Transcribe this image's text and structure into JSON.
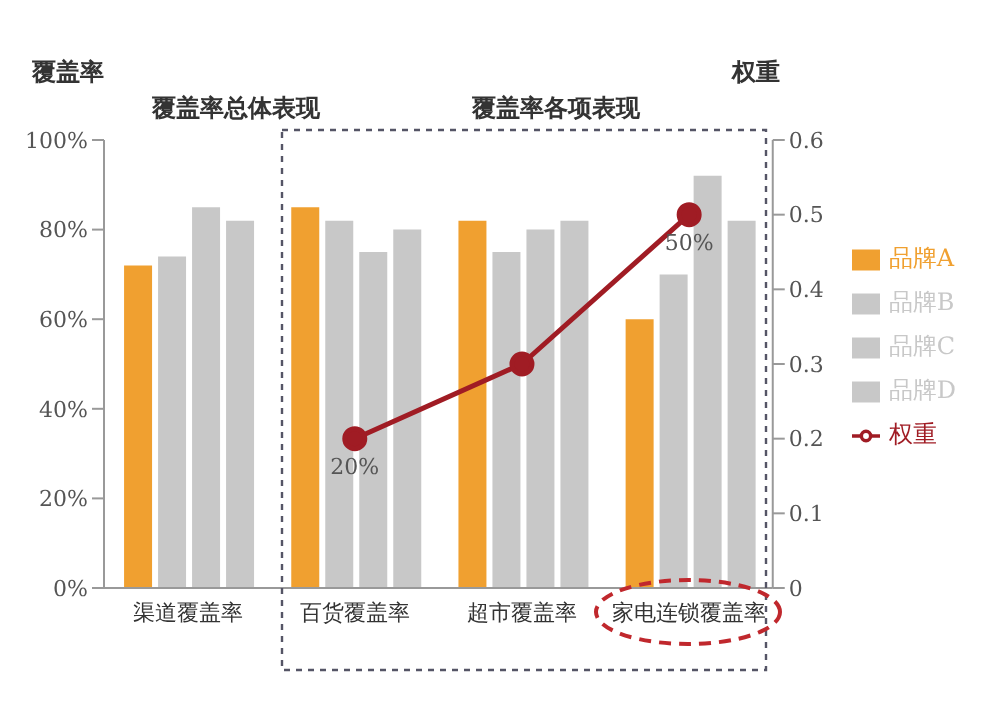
{
  "chart_data": {
    "type": "bar",
    "ylabel": "覆盖率",
    "y2label": "权重",
    "annotations": [
      "覆盖率总体表现",
      "覆盖率各项表现"
    ],
    "categories": [
      "渠道覆盖率",
      "百货覆盖率",
      "超市覆盖率",
      "家电连锁覆盖率"
    ],
    "series": [
      {
        "name": "品牌A",
        "color": "#f0a030",
        "values": [
          72,
          85,
          82,
          60
        ]
      },
      {
        "name": "品牌B",
        "color": "#c8c8c8",
        "values": [
          74,
          82,
          75,
          70
        ]
      },
      {
        "name": "品牌C",
        "color": "#c8c8c8",
        "values": [
          85,
          75,
          80,
          92
        ]
      },
      {
        "name": "品牌D",
        "color": "#c8c8c8",
        "values": [
          82,
          80,
          82,
          82
        ]
      },
      {
        "name": "权重",
        "type": "line",
        "axis": "y2",
        "color": "#a01c24",
        "marker": "circle",
        "values": [
          null,
          0.2,
          0.3,
          0.5
        ],
        "value_labels": [
          null,
          "20%",
          null,
          "50%"
        ]
      }
    ],
    "ylim": [
      0,
      100
    ],
    "yticks": [
      {
        "value": 0,
        "label": "0%"
      },
      {
        "value": 20,
        "label": "20%"
      },
      {
        "value": 40,
        "label": "40%"
      },
      {
        "value": 60,
        "label": "60%"
      },
      {
        "value": 80,
        "label": "80%"
      },
      {
        "value": 100,
        "label": "100%"
      }
    ],
    "y2lim": [
      0,
      0.6
    ],
    "y2ticks": [
      0,
      0.1,
      0.2,
      0.3,
      0.4,
      0.5,
      0.6
    ],
    "legend": "right"
  }
}
